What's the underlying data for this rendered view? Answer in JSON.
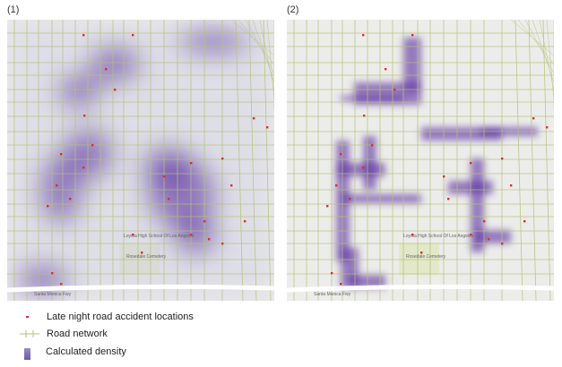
{
  "panels": [
    {
      "label": "(1)",
      "variant": "smooth"
    },
    {
      "label": "(2)",
      "variant": "road-based"
    }
  ],
  "map_labels": {
    "freeway": "Santa Monica Fwy",
    "cemetery": "Rosedale Cemetery",
    "school": "Loyola High School Of Los Angeles"
  },
  "legend": [
    {
      "label": "Late night road accident locations",
      "icon": "red-dot",
      "color": "#d9302a"
    },
    {
      "label": "Road network",
      "icon": "road-line",
      "color": "#b5c27a"
    },
    {
      "label": "Calculated density",
      "icon": "density-swatch",
      "color": "#7a68b0"
    }
  ],
  "colors": {
    "density": "#5a2fa0",
    "road": "#b5c27a",
    "accident": "#d9302a",
    "base": "#ecedea"
  }
}
